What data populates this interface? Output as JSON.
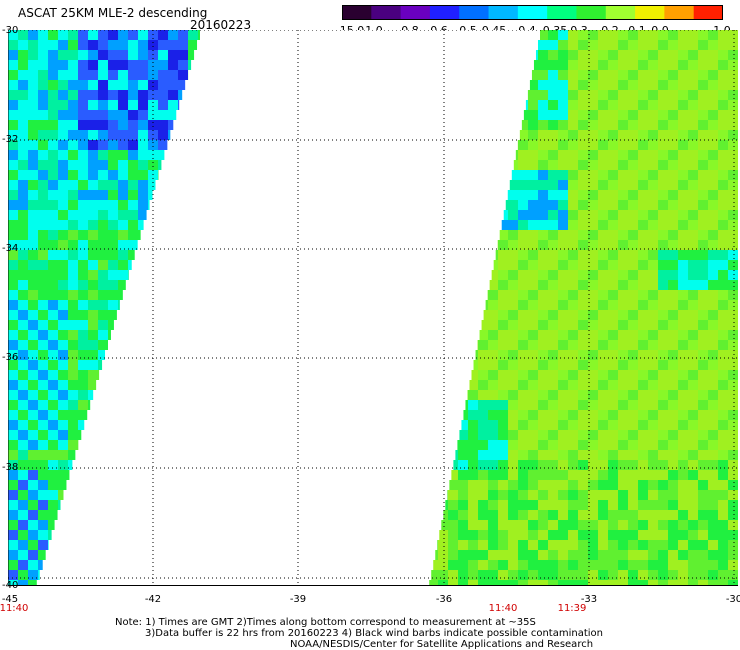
{
  "header": {
    "title": "ASCAT 25KM MLE-2 descending",
    "date": "20160223"
  },
  "colorbar": {
    "labels": [
      "-15.0",
      "-1.0",
      "-0.8",
      "-0.6",
      "-0.5",
      "-0.45",
      "-0.4",
      "-0.35",
      "-0.3",
      "-0.2",
      "-0.1",
      "0.0",
      "1.0"
    ],
    "colors": [
      "#2a0030",
      "#4a0080",
      "#6a00c0",
      "#2020ff",
      "#0070ff",
      "#00b8ff",
      "#00ffff",
      "#00ff80",
      "#30f030",
      "#a0ff30",
      "#f0f000",
      "#ffa000",
      "#ff2000"
    ]
  },
  "axes": {
    "lat_labels": [
      "-30",
      "-32",
      "-34",
      "-36",
      "-38",
      "-40"
    ],
    "lon_labels": [
      "-45",
      "-42",
      "-39",
      "-36",
      "-33",
      "-30"
    ],
    "times": [
      "11:40",
      "11:40",
      "11:39"
    ],
    "lat_range": [
      -40,
      -30
    ],
    "lon_range": [
      -45,
      -30
    ]
  },
  "footer": {
    "line1": "Note: 1) Times are GMT 2)Times along bottom correspond to measurement at ~35S",
    "line2": "3)Data buffer is 22 hrs from 20160223 4) Black wind barbs indicate possible contamination",
    "line3": "NOAA/NESDIS/Center for Satellite Applications and Research"
  }
}
